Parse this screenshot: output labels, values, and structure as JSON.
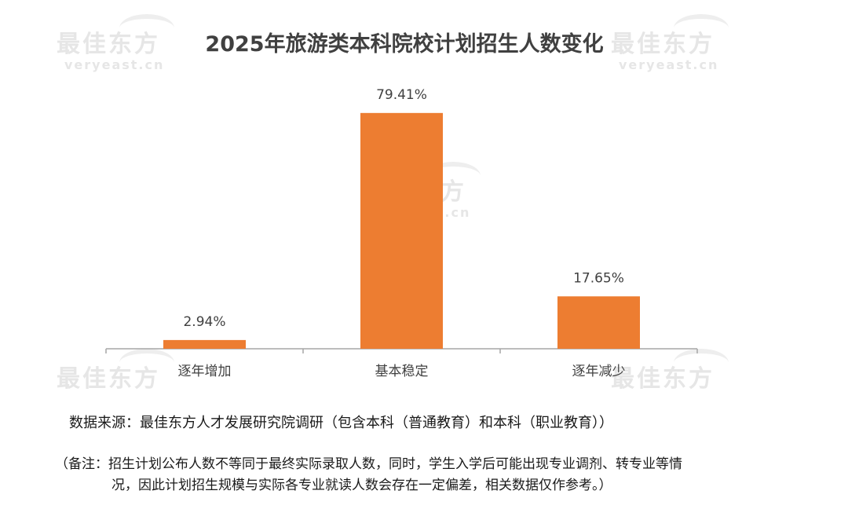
{
  "chart_data": {
    "type": "bar",
    "title": "2025年旅游类本科院校计划招生人数变化",
    "categories": [
      "逐年增加",
      "基本稳定",
      "逐年减少"
    ],
    "values": [
      2.94,
      79.41,
      17.65
    ],
    "data_labels": [
      "2.94%",
      "79.41%",
      "17.65%"
    ],
    "ylim": [
      0,
      100
    ],
    "grid": false,
    "bar_color": "#ED7D31",
    "xlabel": "",
    "ylabel": ""
  },
  "watermark": {
    "cn": "最佳东方",
    "en": "veryeast.cn"
  },
  "footer": {
    "source": "数据来源：最佳东方人才发展研究院调研（包含本科（普通教育）和本科（职业教育））",
    "note_line1": "（备注：招生计划公布人数不等同于最终实际录取人数，同时，学生入学后可能出现专业调剂、转专业等情",
    "note_line2": "况，因此计划招生规模与实际各专业就读人数会存在一定偏差，相关数据仅作参考。）"
  }
}
